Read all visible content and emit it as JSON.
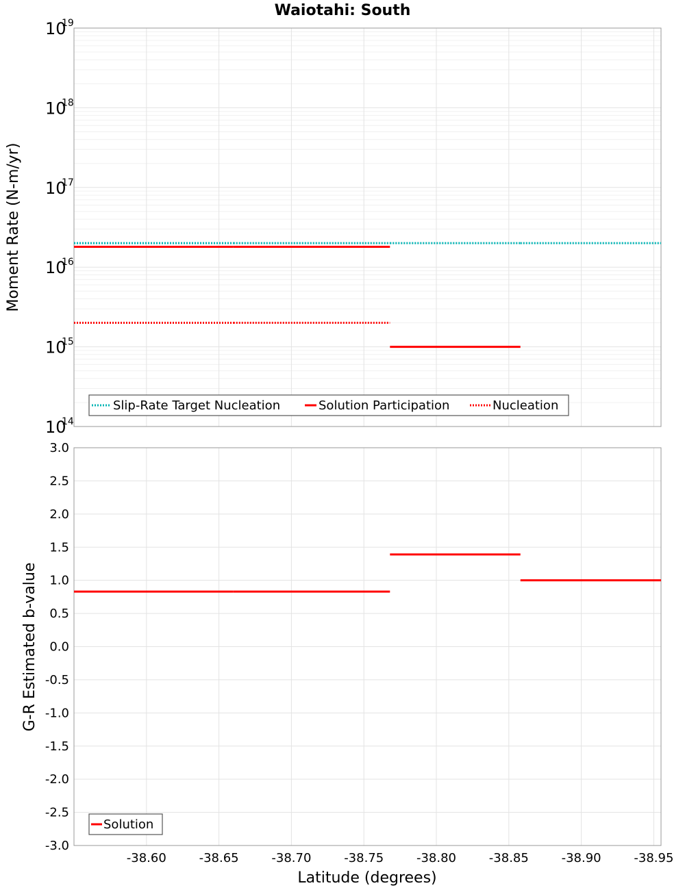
{
  "chart_data": [
    {
      "type": "line",
      "title": "Waiotahi: South",
      "ylabel": "Moment Rate (N-m/yr)",
      "xlabel": "",
      "yscale": "log",
      "ylim": [
        100000000000000.0,
        1e+19
      ],
      "xlim": [
        -38.55,
        -38.955
      ],
      "y_tick_exponents": [
        "14",
        "15",
        "16",
        "17",
        "18",
        "19"
      ],
      "y_tick_base": "10",
      "legend_placement": "bottom-left",
      "series": [
        {
          "name": "Slip-Rate Target Nucleation",
          "color": "#00b4b4",
          "style": "dotted",
          "segments": [
            {
              "x": [
                -38.55,
                -38.66
              ],
              "y": 2e+16
            },
            {
              "x": [
                -38.66,
                -38.768
              ],
              "y": 2e+16
            },
            {
              "x": [
                -38.768,
                -38.858
              ],
              "y": 2e+16
            },
            {
              "x": [
                -38.858,
                -38.955
              ],
              "y": 2e+16
            }
          ]
        },
        {
          "name": "Solution Participation",
          "color": "#ff0000",
          "style": "solid",
          "segments": [
            {
              "x": [
                -38.55,
                -38.66
              ],
              "y": 1.8e+16
            },
            {
              "x": [
                -38.66,
                -38.768
              ],
              "y": 1.8e+16
            },
            {
              "x": [
                -38.768,
                -38.858
              ],
              "y": 1000000000000000.0
            }
          ]
        },
        {
          "name": "Nucleation",
          "color": "#ff0000",
          "style": "dotted",
          "segments": [
            {
              "x": [
                -38.55,
                -38.66
              ],
              "y": 2000000000000000.0
            },
            {
              "x": [
                -38.66,
                -38.768
              ],
              "y": 2000000000000000.0
            }
          ]
        }
      ]
    },
    {
      "type": "line",
      "title": "",
      "ylabel": "G-R Estimated b-value",
      "xlabel": "Latitude (degrees)",
      "ylim": [
        -3.0,
        3.0
      ],
      "xlim": [
        -38.55,
        -38.955
      ],
      "y_ticks": [
        "3.0",
        "2.5",
        "2.0",
        "1.5",
        "1.0",
        "0.5",
        "0.0",
        "-0.5",
        "-1.0",
        "-1.5",
        "-2.0",
        "-2.5",
        "-3.0"
      ],
      "x_ticks": [
        "-38.60",
        "-38.65",
        "-38.70",
        "-38.75",
        "-38.80",
        "-38.85",
        "-38.90",
        "-38.95"
      ],
      "legend_placement": "bottom-left",
      "series": [
        {
          "name": "Solution",
          "color": "#ff0000",
          "style": "solid",
          "segments": [
            {
              "x": [
                -38.55,
                -38.66
              ],
              "y": 0.83
            },
            {
              "x": [
                -38.66,
                -38.768
              ],
              "y": 0.83
            },
            {
              "x": [
                -38.768,
                -38.858
              ],
              "y": 1.39
            },
            {
              "x": [
                -38.858,
                -38.955
              ],
              "y": 1.0
            }
          ]
        }
      ]
    }
  ]
}
